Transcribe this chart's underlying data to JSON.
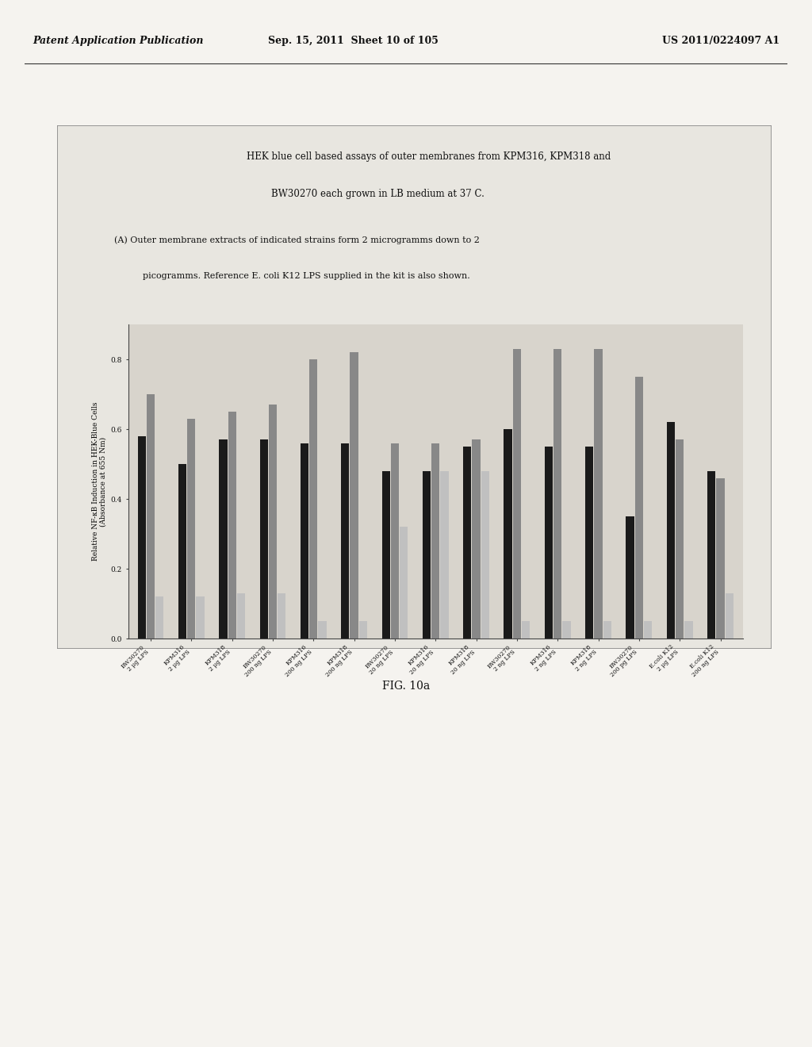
{
  "page_header_left": "Patent Application Publication",
  "page_header_center": "Sep. 15, 2011  Sheet 10 of 105",
  "page_header_right": "US 2011/0224097 A1",
  "chart_title_line1": "HEK blue cell based assays of outer membranes from KPM316, KPM318 and",
  "chart_title_line2": "BW30270 each grown in LB medium at 37 C.",
  "subtitle_line1": "(A) Outer membrane extracts of indicated strains form 2 microgramms down to 2",
  "subtitle_line2": "    picogramms. Reference E. coli K12 LPS supplied in the kit is also shown.",
  "ylabel_line1": "Relative NF-κB Induction in HEK-Blue Cells",
  "ylabel_line2": "(Absorbance at 655 Nm)",
  "figure_label": "FIG. 10a",
  "ylim": [
    0,
    0.9
  ],
  "ytick_labels": [
    "0.8",
    "0.6",
    "0.4",
    "0.2",
    "0.0"
  ],
  "yticks": [
    0.8,
    0.6,
    0.4,
    0.2,
    0.0
  ],
  "groups": [
    {
      "label": "BW30270\n2 μg LPS",
      "bars": [
        0.58,
        0.7,
        0.12
      ]
    },
    {
      "label": "KPM316\n2 μg LPS",
      "bars": [
        0.5,
        0.63,
        0.12
      ]
    },
    {
      "label": "KPM318\n2 μg LPS",
      "bars": [
        0.57,
        0.65,
        0.13
      ]
    },
    {
      "label": "BW30270\n200 ng LPS",
      "bars": [
        0.57,
        0.67,
        0.13
      ]
    },
    {
      "label": "KPM316\n200 ng LPS",
      "bars": [
        0.56,
        0.8,
        0.05
      ]
    },
    {
      "label": "KPM318\n200 ng LPS",
      "bars": [
        0.56,
        0.82,
        0.05
      ]
    },
    {
      "label": "BW30270\n20 ng LPS",
      "bars": [
        0.48,
        0.56,
        0.32
      ]
    },
    {
      "label": "KPM316\n20 ng LPS",
      "bars": [
        0.48,
        0.56,
        0.48
      ]
    },
    {
      "label": "KPM318\n20 ng LPS",
      "bars": [
        0.55,
        0.57,
        0.48
      ]
    },
    {
      "label": "BW30270\n2 ng LPS",
      "bars": [
        0.6,
        0.83,
        0.05
      ]
    },
    {
      "label": "KPM316\n2 ng LPS",
      "bars": [
        0.55,
        0.83,
        0.05
      ]
    },
    {
      "label": "KPM318\n2 ng LPS",
      "bars": [
        0.55,
        0.83,
        0.05
      ]
    },
    {
      "label": "BW30270\n200 pg LPS",
      "bars": [
        0.35,
        0.75,
        0.05
      ]
    },
    {
      "label": "E.coli K12\n2 μg LPS",
      "bars": [
        0.62,
        0.57,
        0.05
      ]
    },
    {
      "label": "E.coli K12\n200 ng LPS",
      "bars": [
        0.48,
        0.46,
        0.13
      ]
    }
  ],
  "bar_colors": [
    "#1a1a1a",
    "#888888",
    "#c0c0c0"
  ],
  "bar_width": 0.22,
  "chart_bg": "#d8d4cc",
  "box_bg": "#e8e6e0",
  "paper_color": "#f5f3ef",
  "border_color": "#888888",
  "text_color": "#111111"
}
